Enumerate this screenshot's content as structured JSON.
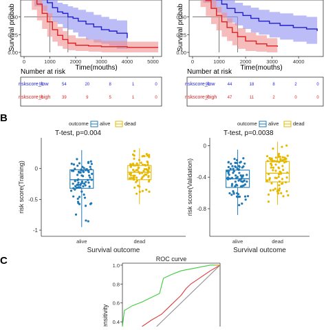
{
  "panels": {
    "B": {
      "label": "B"
    },
    "C": {
      "label": "C"
    }
  },
  "chart_data": [
    {
      "type": "line",
      "panel": "A-left",
      "ylabel": "Survival probab",
      "xlabel": "Time(mouths)",
      "xlim": [
        0,
        5200
      ],
      "ylim": [
        0,
        1.0
      ],
      "x_ticks": [
        "0",
        "1000",
        "2000",
        "3000",
        "4000",
        "5000"
      ],
      "y_ticks": [
        "0.00",
        "0.25",
        "0.50"
      ],
      "median_lines": [
        1000,
        1700
      ],
      "series": [
        {
          "name": "riskscore_low",
          "color": "#1f1fcf",
          "fill": "#8f8ff0",
          "x": [
            0,
            400,
            700,
            900,
            1100,
            1300,
            1500,
            1700,
            1900,
            2100,
            2400,
            2700,
            3000,
            3300,
            3600,
            4000
          ],
          "y": [
            1.0,
            0.86,
            0.76,
            0.7,
            0.63,
            0.57,
            0.55,
            0.5,
            0.48,
            0.44,
            0.4,
            0.36,
            0.32,
            0.3,
            0.27,
            0.2
          ],
          "upper": [
            1.0,
            0.93,
            0.86,
            0.81,
            0.75,
            0.7,
            0.68,
            0.65,
            0.63,
            0.6,
            0.57,
            0.53,
            0.5,
            0.47,
            0.45,
            0.4
          ],
          "lower": [
            1.0,
            0.78,
            0.65,
            0.58,
            0.5,
            0.43,
            0.4,
            0.34,
            0.32,
            0.28,
            0.22,
            0.18,
            0.14,
            0.12,
            0.09,
            0.05
          ]
        },
        {
          "name": "riskscore_high",
          "color": "#e02020",
          "fill": "#f08f8f",
          "x": [
            0,
            300,
            500,
            700,
            900,
            1100,
            1300,
            1500,
            1700,
            2000,
            2500,
            3000,
            4000,
            5200
          ],
          "y": [
            1.0,
            0.82,
            0.68,
            0.55,
            0.43,
            0.32,
            0.24,
            0.18,
            0.13,
            0.1,
            0.09,
            0.08,
            0.07,
            0.07
          ],
          "upper": [
            1.0,
            0.88,
            0.77,
            0.66,
            0.55,
            0.44,
            0.36,
            0.3,
            0.24,
            0.2,
            0.18,
            0.16,
            0.15,
            0.15
          ],
          "lower": [
            1.0,
            0.75,
            0.6,
            0.45,
            0.33,
            0.22,
            0.15,
            0.09,
            0.05,
            0.03,
            0.02,
            0.01,
            0.0,
            0.0
          ]
        }
      ]
    },
    {
      "type": "line",
      "panel": "A-right",
      "ylabel": "Survival probab",
      "xlabel": "Time(mouths)",
      "xlim": [
        0,
        4800
      ],
      "ylim": [
        0,
        1.0
      ],
      "x_ticks": [
        "0",
        "1000",
        "2000",
        "3000",
        "4000"
      ],
      "y_ticks": [
        "0.00",
        "0.25",
        "0.50"
      ],
      "median_lines": [
        1000,
        1700
      ],
      "series": [
        {
          "name": "riskscore_low",
          "color": "#1f1fcf",
          "fill": "#8f8ff0",
          "x": [
            0,
            400,
            700,
            900,
            1100,
            1300,
            1600,
            1900,
            2200,
            2500,
            2900,
            3300,
            3800,
            4300,
            4700
          ],
          "y": [
            1.0,
            0.88,
            0.8,
            0.74,
            0.68,
            0.62,
            0.56,
            0.52,
            0.48,
            0.44,
            0.41,
            0.38,
            0.35,
            0.33,
            0.3
          ],
          "upper": [
            1.0,
            0.95,
            0.9,
            0.85,
            0.8,
            0.75,
            0.7,
            0.66,
            0.63,
            0.6,
            0.57,
            0.55,
            0.52,
            0.5,
            0.48
          ],
          "lower": [
            1.0,
            0.8,
            0.7,
            0.62,
            0.56,
            0.49,
            0.42,
            0.38,
            0.33,
            0.28,
            0.25,
            0.21,
            0.18,
            0.15,
            0.12
          ]
        },
        {
          "name": "riskscore_high",
          "color": "#e02020",
          "fill": "#f08f8f",
          "x": [
            0,
            300,
            500,
            700,
            900,
            1100,
            1300,
            1500,
            1700,
            2000,
            2400,
            2800,
            3200
          ],
          "y": [
            1.0,
            0.85,
            0.73,
            0.62,
            0.52,
            0.43,
            0.35,
            0.28,
            0.22,
            0.16,
            0.12,
            0.09,
            0.08
          ],
          "upper": [
            1.0,
            0.91,
            0.82,
            0.73,
            0.64,
            0.56,
            0.48,
            0.41,
            0.34,
            0.28,
            0.24,
            0.2,
            0.18
          ],
          "lower": [
            1.0,
            0.78,
            0.64,
            0.51,
            0.4,
            0.31,
            0.22,
            0.16,
            0.1,
            0.05,
            0.02,
            0.01,
            0.0
          ]
        }
      ]
    },
    {
      "type": "table",
      "panel": "A-left-risk",
      "title": "Number at risk",
      "rows": [
        {
          "label": "riskscore_low",
          "color": "#1f1fcf",
          "values": [
            "91",
            "54",
            "20",
            "8",
            "1",
            "0"
          ]
        },
        {
          "label": "riskscore_high",
          "color": "#e02020",
          "values": [
            "91",
            "39",
            "9",
            "5",
            "1",
            "0"
          ]
        }
      ]
    },
    {
      "type": "table",
      "panel": "A-right-risk",
      "title": "Number at risk",
      "rows": [
        {
          "label": "riskscore_low",
          "color": "#1f1fcf",
          "values": [
            "91",
            "44",
            "18",
            "8",
            "2",
            "0"
          ]
        },
        {
          "label": "riskscore_high",
          "color": "#e02020",
          "values": [
            "90",
            "47",
            "11",
            "2",
            "0",
            "0"
          ]
        }
      ]
    },
    {
      "type": "scatter",
      "panel": "B-left",
      "title": "T-test, p=0.004",
      "legend_title": "outcome",
      "legend": [
        "alive",
        "dead"
      ],
      "legend_position": "top",
      "xlabel": "Survival outcome",
      "ylabel": "risk score(Training)",
      "categories": [
        "alive",
        "dead"
      ],
      "ylim": [
        -1.1,
        0.5
      ],
      "y_ticks": [
        -1.0,
        -0.5,
        0.0
      ],
      "colors": [
        "#1f78b4",
        "#e6b800"
      ],
      "boxes": [
        {
          "q1": -0.32,
          "median": -0.18,
          "q3": -0.02,
          "whisker_low": -0.95,
          "whisker_high": 0.3
        },
        {
          "q1": -0.18,
          "median": -0.06,
          "q3": 0.05,
          "whisker_low": -0.58,
          "whisker_high": 0.33
        }
      ]
    },
    {
      "type": "scatter",
      "panel": "B-right",
      "title": "T-test, p=0.0038",
      "legend_title": "outcome",
      "legend": [
        "alive",
        "dead"
      ],
      "legend_position": "top",
      "xlabel": "Survival outcome",
      "ylabel": "risk score(Validation)",
      "categories": [
        "alive",
        "dead"
      ],
      "ylim": [
        -1.15,
        0.1
      ],
      "y_ticks": [
        -0.8,
        -0.4,
        0.0
      ],
      "colors": [
        "#1f78b4",
        "#e6b800"
      ],
      "boxes": [
        {
          "q1": -0.53,
          "median": -0.42,
          "q3": -0.31,
          "whisker_low": -0.88,
          "whisker_high": -0.05
        },
        {
          "q1": -0.46,
          "median": -0.35,
          "q3": -0.2,
          "whisker_low": -0.75,
          "whisker_high": 0.05
        }
      ]
    },
    {
      "type": "line",
      "panel": "C",
      "title": "ROC curve",
      "ylabel": "Sensitivity",
      "xlim": [
        0,
        1
      ],
      "ylim": [
        0.35,
        1.05
      ],
      "y_ticks": [
        "0.4",
        "0.6",
        "0.8",
        "1.0"
      ],
      "series": [
        {
          "color": "#3dcc3d",
          "x": [
            0,
            0.02,
            0.1,
            0.2,
            0.3,
            0.38,
            0.42,
            0.5,
            0.6,
            0.7,
            0.8,
            0.9,
            1.0
          ],
          "y": [
            0.35,
            0.52,
            0.57,
            0.61,
            0.66,
            0.7,
            0.86,
            0.9,
            0.94,
            0.96,
            0.98,
            1.0,
            1.0
          ]
        },
        {
          "color": "#e03a3a",
          "x": [
            0.2,
            0.3,
            0.4,
            0.5,
            0.6,
            0.65,
            0.7,
            0.8,
            0.9,
            1.0
          ],
          "y": [
            0.35,
            0.42,
            0.48,
            0.58,
            0.68,
            0.75,
            0.8,
            0.87,
            0.94,
            1.0
          ]
        },
        {
          "color": "#f0a020",
          "x": [
            0.95,
            1.0,
            1.0
          ],
          "y": [
            1.0,
            1.0,
            1.0
          ]
        },
        {
          "color": "#909090",
          "x": [
            0.35,
            1.0
          ],
          "y": [
            0.35,
            1.0
          ]
        }
      ]
    }
  ]
}
